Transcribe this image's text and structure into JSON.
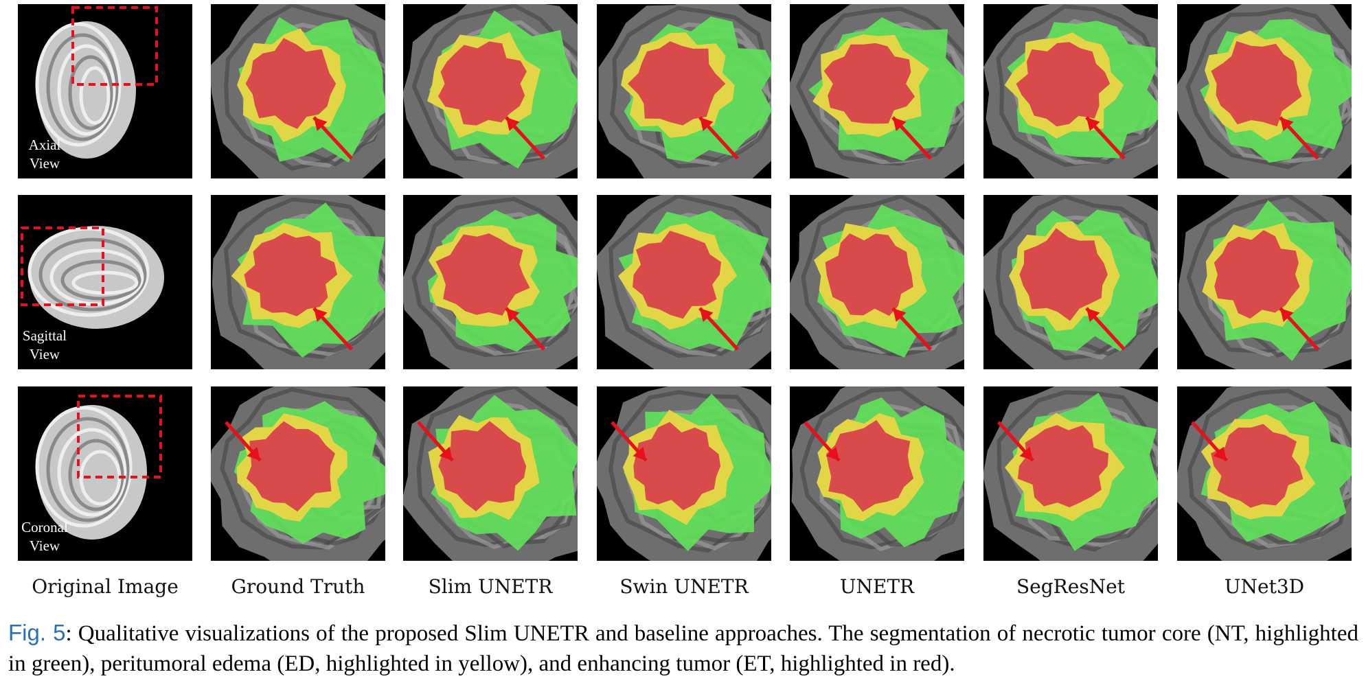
{
  "figure": {
    "rows": [
      {
        "view_line1": "Axial",
        "view_line2": "View"
      },
      {
        "view_line1": "Sagittal",
        "view_line2": "View"
      },
      {
        "view_line1": "Coronal",
        "view_line2": "View"
      }
    ],
    "columns": [
      "Original Image",
      "Ground Truth",
      "Slim UNETR",
      "Swin UNETR",
      "UNETR",
      "SegResNet",
      "UNet3D"
    ],
    "colors": {
      "necrotic_core": "#5fe05a",
      "edema": "#e3d646",
      "enhancing": "#d94a4a",
      "arrow": "#e8101a",
      "crop_box": "#e8101a",
      "figref": "#2a6fbb"
    }
  },
  "caption": {
    "ref": "Fig. 5",
    "text": ": Qualitative visualizations of the proposed Slim UNETR and baseline approaches. The segmentation of necrotic tumor core (NT, highlighted in green), peritumoral edema (ED, highlighted in yellow), and enhancing tumor (ET, highlighted in red)."
  }
}
